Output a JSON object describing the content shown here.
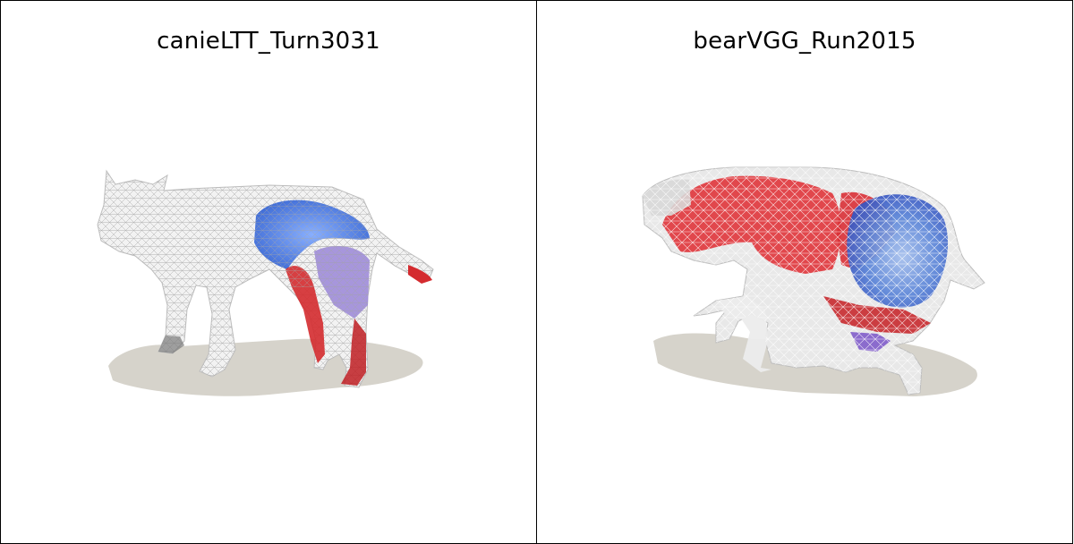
{
  "panels": [
    {
      "title": "canieLTT_Turn3031",
      "subject": "wolf-mesh"
    },
    {
      "title": "bearVGG_Run2015",
      "subject": "bear-mesh"
    }
  ],
  "colors": {
    "shadow": "#d6d3cb",
    "mesh_white": "#f2f2f2",
    "wire": "#9a9a9a",
    "red": "#e8323a",
    "blue": "#3a6fd6",
    "purple": "#8a6ad0"
  }
}
